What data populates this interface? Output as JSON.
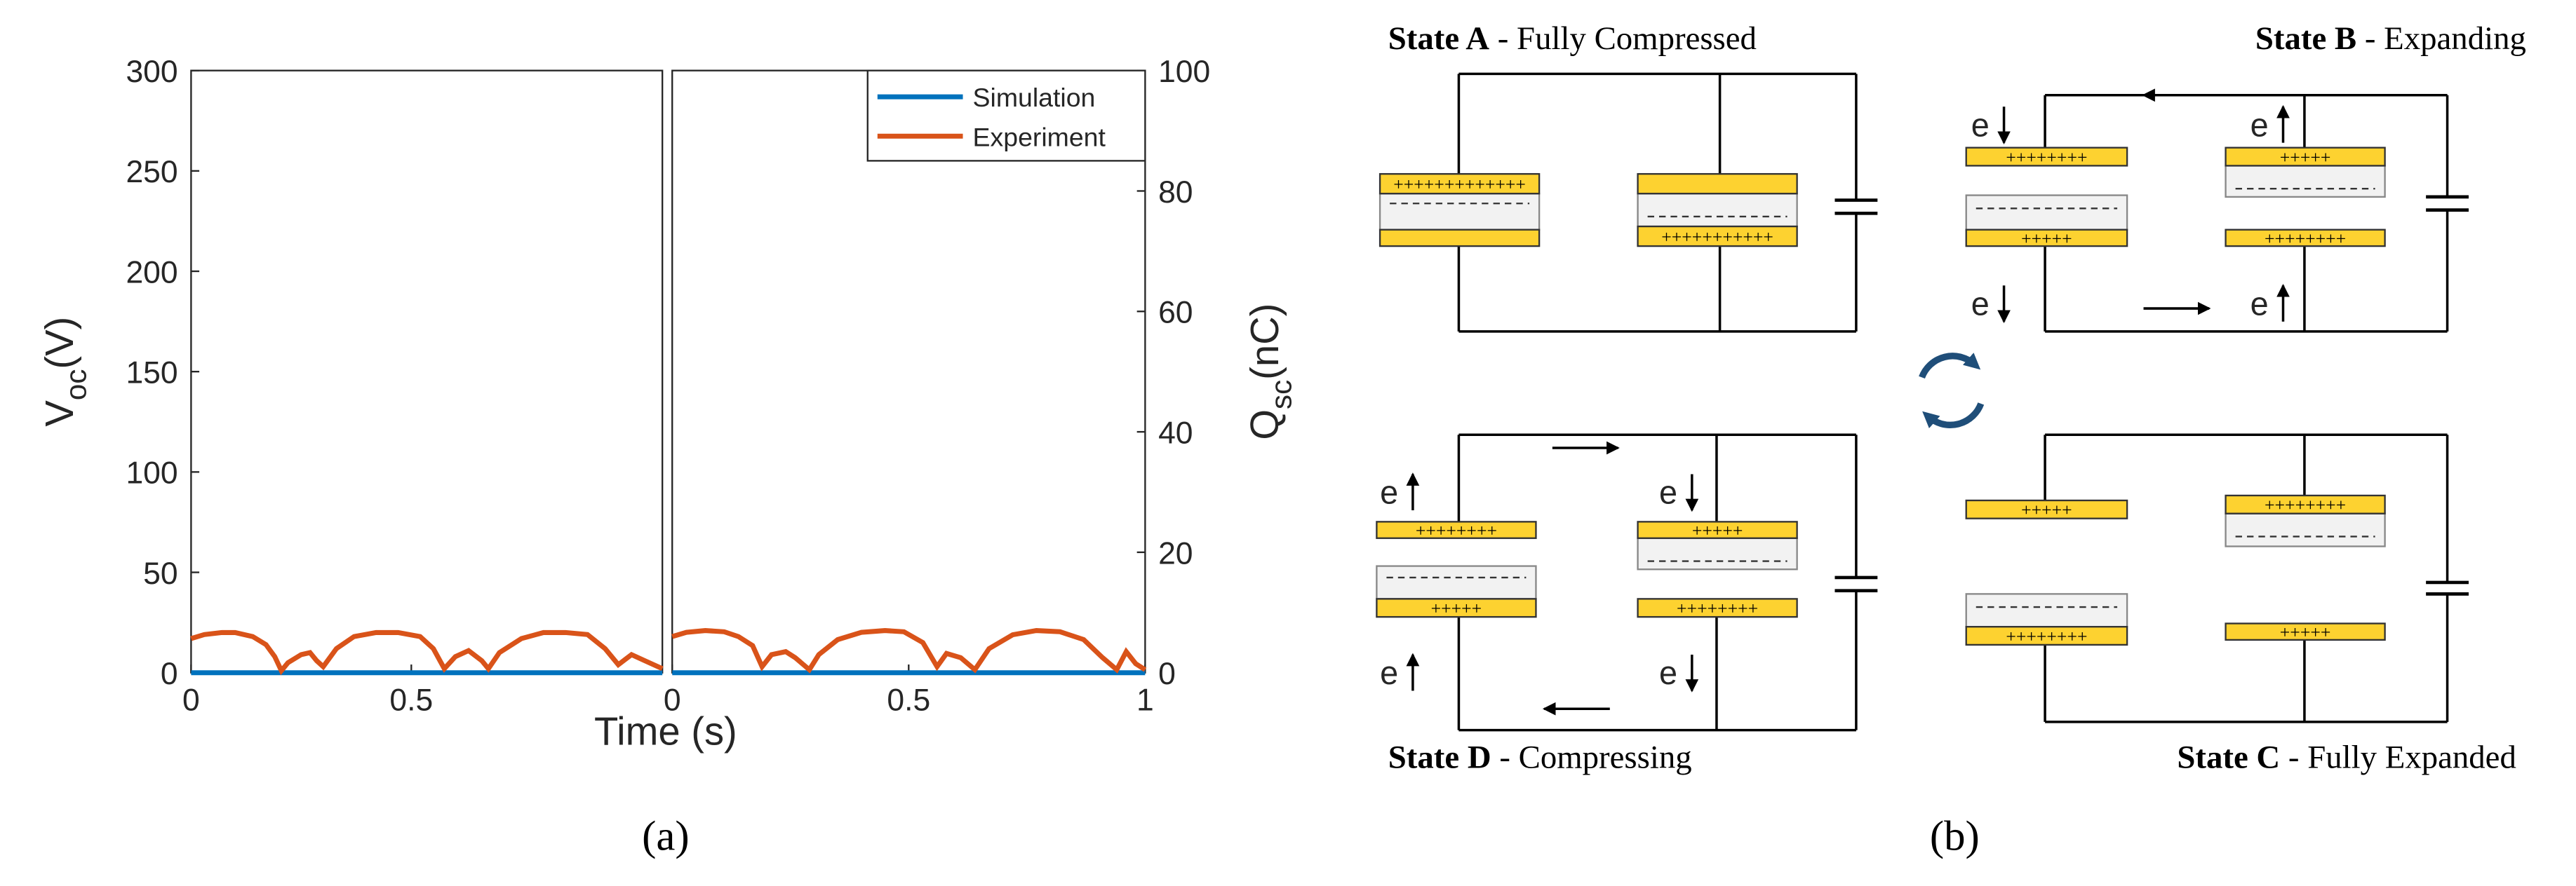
{
  "chart_data": [
    {
      "type": "line",
      "xlabel": "Time (s)",
      "ylabel": {
        "symbol": "V",
        "subscript": "oc",
        "unit": "(V)"
      },
      "x": [
        0,
        0.03,
        0.07,
        0.1,
        0.14,
        0.17,
        0.19,
        0.205,
        0.22,
        0.25,
        0.27,
        0.285,
        0.3,
        0.33,
        0.37,
        0.42,
        0.47,
        0.52,
        0.55,
        0.575,
        0.6,
        0.63,
        0.66,
        0.675,
        0.7,
        0.75,
        0.8,
        0.85,
        0.9,
        0.94,
        0.97,
        1.0,
        1.03,
        1.07
      ],
      "series": [
        {
          "color": "#0072bd",
          "values": [
            0,
            0,
            0,
            0,
            0,
            0,
            0,
            0,
            0,
            0,
            0,
            0,
            0,
            0,
            0,
            0,
            0,
            0,
            0,
            0,
            0,
            0,
            0,
            0,
            0,
            0,
            0,
            0,
            0,
            0,
            0,
            0,
            0,
            0
          ]
        },
        {
          "color": "#d95319",
          "values": [
            17,
            19,
            20,
            20,
            18,
            14,
            8,
            1,
            5,
            9,
            10,
            6,
            3,
            12,
            18,
            20,
            20,
            18,
            12,
            2,
            8,
            11,
            6,
            2,
            10,
            17,
            20,
            20,
            19,
            12,
            4,
            9,
            6,
            2
          ]
        }
      ],
      "xlim": [
        0,
        1.07
      ],
      "xticks": [
        0,
        0.5
      ],
      "ylim": [
        0,
        300
      ],
      "yticks": [
        0,
        50,
        100,
        150,
        200,
        250,
        300
      ]
    },
    {
      "type": "line",
      "ylabel": {
        "symbol": "Q",
        "subscript": "sc",
        "unit": "(nC)"
      },
      "x": [
        0,
        0.03,
        0.07,
        0.11,
        0.14,
        0.17,
        0.19,
        0.21,
        0.24,
        0.26,
        0.29,
        0.31,
        0.35,
        0.4,
        0.45,
        0.49,
        0.53,
        0.56,
        0.58,
        0.61,
        0.64,
        0.67,
        0.72,
        0.77,
        0.82,
        0.87,
        0.91,
        0.94,
        0.96,
        0.98,
        1.0
      ],
      "series": [
        {
          "name": "Simulation",
          "color": "#0072bd",
          "axis": "y2",
          "values": [
            0,
            0,
            0,
            0,
            0,
            0,
            0,
            0,
            0,
            0,
            0,
            0,
            0,
            0,
            0,
            0,
            0,
            0,
            0,
            0,
            0,
            0,
            0,
            0,
            0,
            0,
            0,
            0,
            0,
            0,
            0
          ]
        },
        {
          "name": "Experiment",
          "color": "#d95319",
          "axis": "y2",
          "values": [
            6,
            6.7,
            7,
            6.8,
            6,
            4.5,
            1,
            3,
            3.5,
            2.5,
            0.5,
            3,
            5.5,
            6.7,
            7,
            6.8,
            5,
            1,
            3.2,
            2.5,
            0.5,
            4,
            6.3,
            7,
            6.8,
            5.5,
            2.5,
            0.5,
            3.5,
            1.5,
            0.5
          ]
        }
      ],
      "xlim": [
        0,
        1
      ],
      "xticks": [
        0,
        0.5,
        1
      ],
      "y2lim": [
        0,
        100
      ],
      "y2ticks": [
        0,
        20,
        40,
        60,
        80,
        100
      ],
      "legend": "upper right"
    }
  ],
  "panel_labels": [
    "(a)",
    "(b)"
  ],
  "diagram": {
    "states": [
      {
        "label": "State A",
        "caption": "- Fully Compressed",
        "charges": [
          "+++++++++++++",
          "+++++++++++"
        ],
        "electrons": []
      },
      {
        "label": "State B",
        "caption": "- Expanding",
        "charges": [
          "++++++++",
          "+++++",
          "+++++",
          "++++++++"
        ],
        "electrons": [
          "e",
          "e",
          "e",
          "e"
        ]
      },
      {
        "label": "State D",
        "caption": "- Compressing",
        "charges": [
          "++++++++",
          "+++++",
          "+++++",
          "++++++++"
        ],
        "electrons": [
          "e",
          "e",
          "e",
          "e"
        ]
      },
      {
        "label": "State C",
        "caption": "- Fully Expanded",
        "charges": [
          "+++++",
          "++++++++",
          "++++++++",
          "+++++"
        ],
        "electrons": []
      }
    ]
  }
}
